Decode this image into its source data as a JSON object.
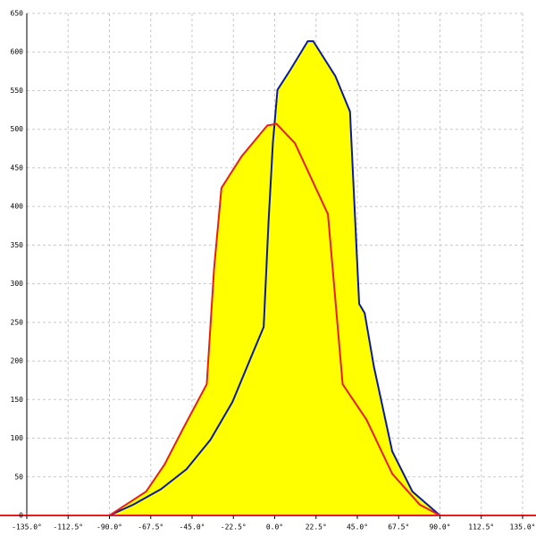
{
  "chart_data": {
    "type": "area-line",
    "fill_color": "#ffff00",
    "grid": true,
    "xlim": [
      -135,
      135
    ],
    "ylim": [
      0,
      650
    ],
    "xticks": [
      {
        "value": -135,
        "label": "-135.0°"
      },
      {
        "value": -112.5,
        "label": "-112.5°"
      },
      {
        "value": -90,
        "label": "-90.0°"
      },
      {
        "value": -67.5,
        "label": "-67.5°"
      },
      {
        "value": -45,
        "label": "-45.0°"
      },
      {
        "value": -22.5,
        "label": "-22.5°"
      },
      {
        "value": 0,
        "label": "0.0°"
      },
      {
        "value": 22.5,
        "label": "22.5°"
      },
      {
        "value": 45,
        "label": "45.0°"
      },
      {
        "value": 67.5,
        "label": "67.5°"
      },
      {
        "value": 90,
        "label": "90.0°"
      },
      {
        "value": 112.5,
        "label": "112.5°"
      },
      {
        "value": 135,
        "label": "135.0°"
      }
    ],
    "yticks": [
      0,
      50,
      100,
      150,
      200,
      250,
      300,
      350,
      400,
      450,
      500,
      550,
      600,
      650
    ],
    "series": [
      {
        "color": "#0a1aa0",
        "x": [
          -90,
          -77,
          -62,
          -48,
          -35,
          -23,
          -12,
          -6,
          -3.4,
          -1,
          1.5,
          8,
          18,
          21,
          33,
          41,
          46,
          49,
          54,
          64,
          75,
          90
        ],
        "values": [
          0,
          14,
          34,
          60,
          98,
          147,
          210,
          244,
          378,
          482,
          551,
          575,
          614,
          614,
          569,
          523,
          274,
          262,
          193,
          83,
          31,
          0
        ]
      },
      {
        "color": "#e81e1e",
        "x": [
          -90,
          -70,
          -60,
          -50,
          -37,
          -33,
          -29,
          -18,
          -4,
          1,
          11,
          29,
          37,
          50,
          64,
          79,
          90
        ],
        "values": [
          0,
          31,
          66,
          112,
          170,
          320,
          424,
          465,
          505,
          507,
          482,
          390,
          170,
          124,
          54,
          14,
          0
        ]
      }
    ]
  }
}
